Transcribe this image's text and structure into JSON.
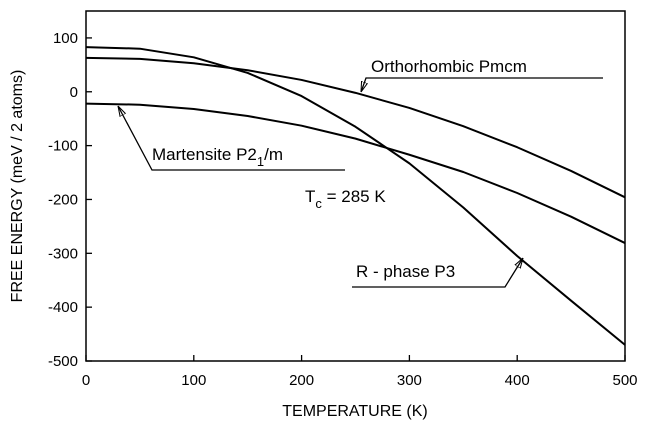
{
  "chart_data": {
    "type": "line",
    "x_label": "TEMPERATURE  (K)",
    "y_label": "FREE  ENERGY  (meV / 2 atoms)",
    "x": [
      0,
      50,
      100,
      150,
      200,
      250,
      300,
      350,
      400,
      450,
      500
    ],
    "series": [
      {
        "name": "Orthorhombic  Pmcm",
        "color": "#000000",
        "values": [
          63,
          61,
          53,
          40,
          22,
          -2,
          -30,
          -64,
          -103,
          -147,
          -196
        ]
      },
      {
        "name": "Martensite  P2",
        "name_sub": "1",
        "name_after": "/m",
        "color": "#000000",
        "values": [
          -22,
          -24,
          -32,
          -45,
          -63,
          -87,
          -117,
          -149,
          -188,
          -232,
          -281
        ]
      },
      {
        "name": "R - phase  P3",
        "color": "#000000",
        "values": [
          83,
          80,
          64,
          35,
          -8,
          -65,
          -133,
          -215,
          -305,
          -388,
          -470
        ]
      }
    ],
    "annotation": {
      "text": "T",
      "sub": "c",
      "after": " = 285 K"
    },
    "xlim": [
      0,
      500
    ],
    "xticks": [
      0,
      100,
      200,
      300,
      400,
      500
    ],
    "ylim": [
      -500,
      150
    ],
    "yticks": [
      -500,
      -400,
      -300,
      -200,
      -100,
      0,
      100
    ]
  }
}
